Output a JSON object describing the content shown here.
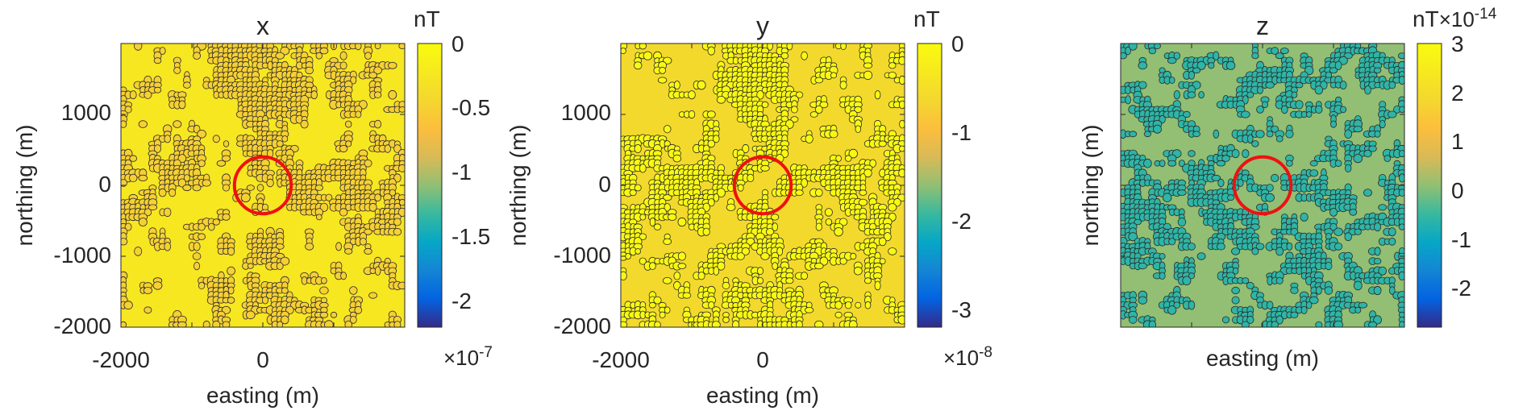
{
  "figure": {
    "background": "#ffffff"
  },
  "chart_data": [
    {
      "type": "heatmap",
      "title": "x",
      "xlabel": "easting (m)",
      "ylabel": "northing (m)",
      "xlim": [
        -2000,
        2000
      ],
      "ylim": [
        -2000,
        2000
      ],
      "xtick_labels": [
        "-2000",
        "0"
      ],
      "ytick_labels": [
        "1000",
        "0",
        "-1000",
        "-2000"
      ],
      "colorbar": {
        "unit": "nT",
        "range": [
          -2.2,
          0
        ],
        "tick_labels": [
          "0",
          "-0.5",
          "-1",
          "-1.5",
          "-2"
        ],
        "exponent_base": "×10",
        "exponent_power": "-7"
      },
      "field": {
        "dominant_level": -0.25,
        "secondary_level": -0.5,
        "pattern": "radial"
      },
      "marker": {
        "type": "circle",
        "center": [
          0,
          0
        ],
        "radius": 400,
        "color": "#ee1111"
      }
    },
    {
      "type": "heatmap",
      "title": "y",
      "xlabel": "easting (m)",
      "ylabel": "northing (m)",
      "xlim": [
        -2000,
        2000
      ],
      "ylim": [
        -2000,
        2000
      ],
      "xtick_labels": [
        "-2000",
        "0"
      ],
      "ytick_labels": [
        "1000",
        "0",
        "-1000",
        "-2000"
      ],
      "colorbar": {
        "unit": "nT",
        "range": [
          -3.2,
          0
        ],
        "tick_labels": [
          "0",
          "-1",
          "-2",
          "-3"
        ],
        "exponent_base": "×10",
        "exponent_power": "-8"
      },
      "field": {
        "dominant_level": -0.6,
        "secondary_level": -0.05,
        "pattern": "radial"
      },
      "marker": {
        "type": "circle",
        "center": [
          0,
          0
        ],
        "radius": 400,
        "color": "#ee1111"
      }
    },
    {
      "type": "heatmap",
      "title": "z",
      "xlabel": "easting (m)",
      "ylabel": "northing (m)",
      "xlim": [
        -2000,
        2000
      ],
      "ylim": [
        -2000,
        2000
      ],
      "xtick_labels": [],
      "ytick_labels": [],
      "colorbar": {
        "unit": "nT",
        "range": [
          -2.8,
          3
        ],
        "tick_labels": [
          "3",
          "2",
          "1",
          "0",
          "-1",
          "-2"
        ],
        "exponent_base": "×10",
        "exponent_power": "-14"
      },
      "field": {
        "dominant_level": 0.1,
        "secondary_level": -0.6,
        "pattern": "random"
      },
      "marker": {
        "type": "circle",
        "center": [
          0,
          0
        ],
        "radius": 400,
        "color": "#ee1111"
      }
    }
  ]
}
